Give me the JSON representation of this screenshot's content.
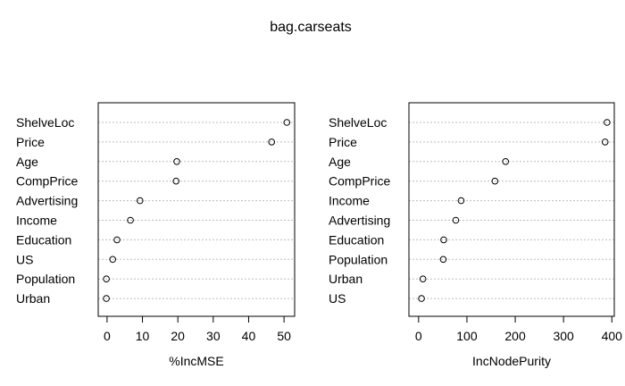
{
  "title": "bag.carseats",
  "chart_data": [
    {
      "type": "scatter",
      "xlabel": "%IncMSE",
      "xlim": [
        -2.5,
        53
      ],
      "xticks": [
        0,
        10,
        20,
        30,
        40,
        50
      ],
      "grid": true,
      "points": [
        {
          "label": "ShelveLoc",
          "value": 50.8
        },
        {
          "label": "Price",
          "value": 46.5
        },
        {
          "label": "Age",
          "value": 19.7
        },
        {
          "label": "CompPrice",
          "value": 19.5
        },
        {
          "label": "Advertising",
          "value": 9.3
        },
        {
          "label": "Income",
          "value": 6.6
        },
        {
          "label": "Education",
          "value": 2.8
        },
        {
          "label": "US",
          "value": 1.6
        },
        {
          "label": "Population",
          "value": -0.2
        },
        {
          "label": "Urban",
          "value": -0.2
        }
      ]
    },
    {
      "type": "scatter",
      "xlabel": "IncNodePurity",
      "xlim": [
        -20,
        405
      ],
      "xticks": [
        0,
        100,
        200,
        300,
        400
      ],
      "grid": true,
      "points": [
        {
          "label": "ShelveLoc",
          "value": 390
        },
        {
          "label": "Price",
          "value": 386
        },
        {
          "label": "Age",
          "value": 180
        },
        {
          "label": "CompPrice",
          "value": 158
        },
        {
          "label": "Income",
          "value": 88
        },
        {
          "label": "Advertising",
          "value": 77
        },
        {
          "label": "Education",
          "value": 52
        },
        {
          "label": "Population",
          "value": 51
        },
        {
          "label": "Urban",
          "value": 9
        },
        {
          "label": "US",
          "value": 6
        }
      ]
    }
  ]
}
